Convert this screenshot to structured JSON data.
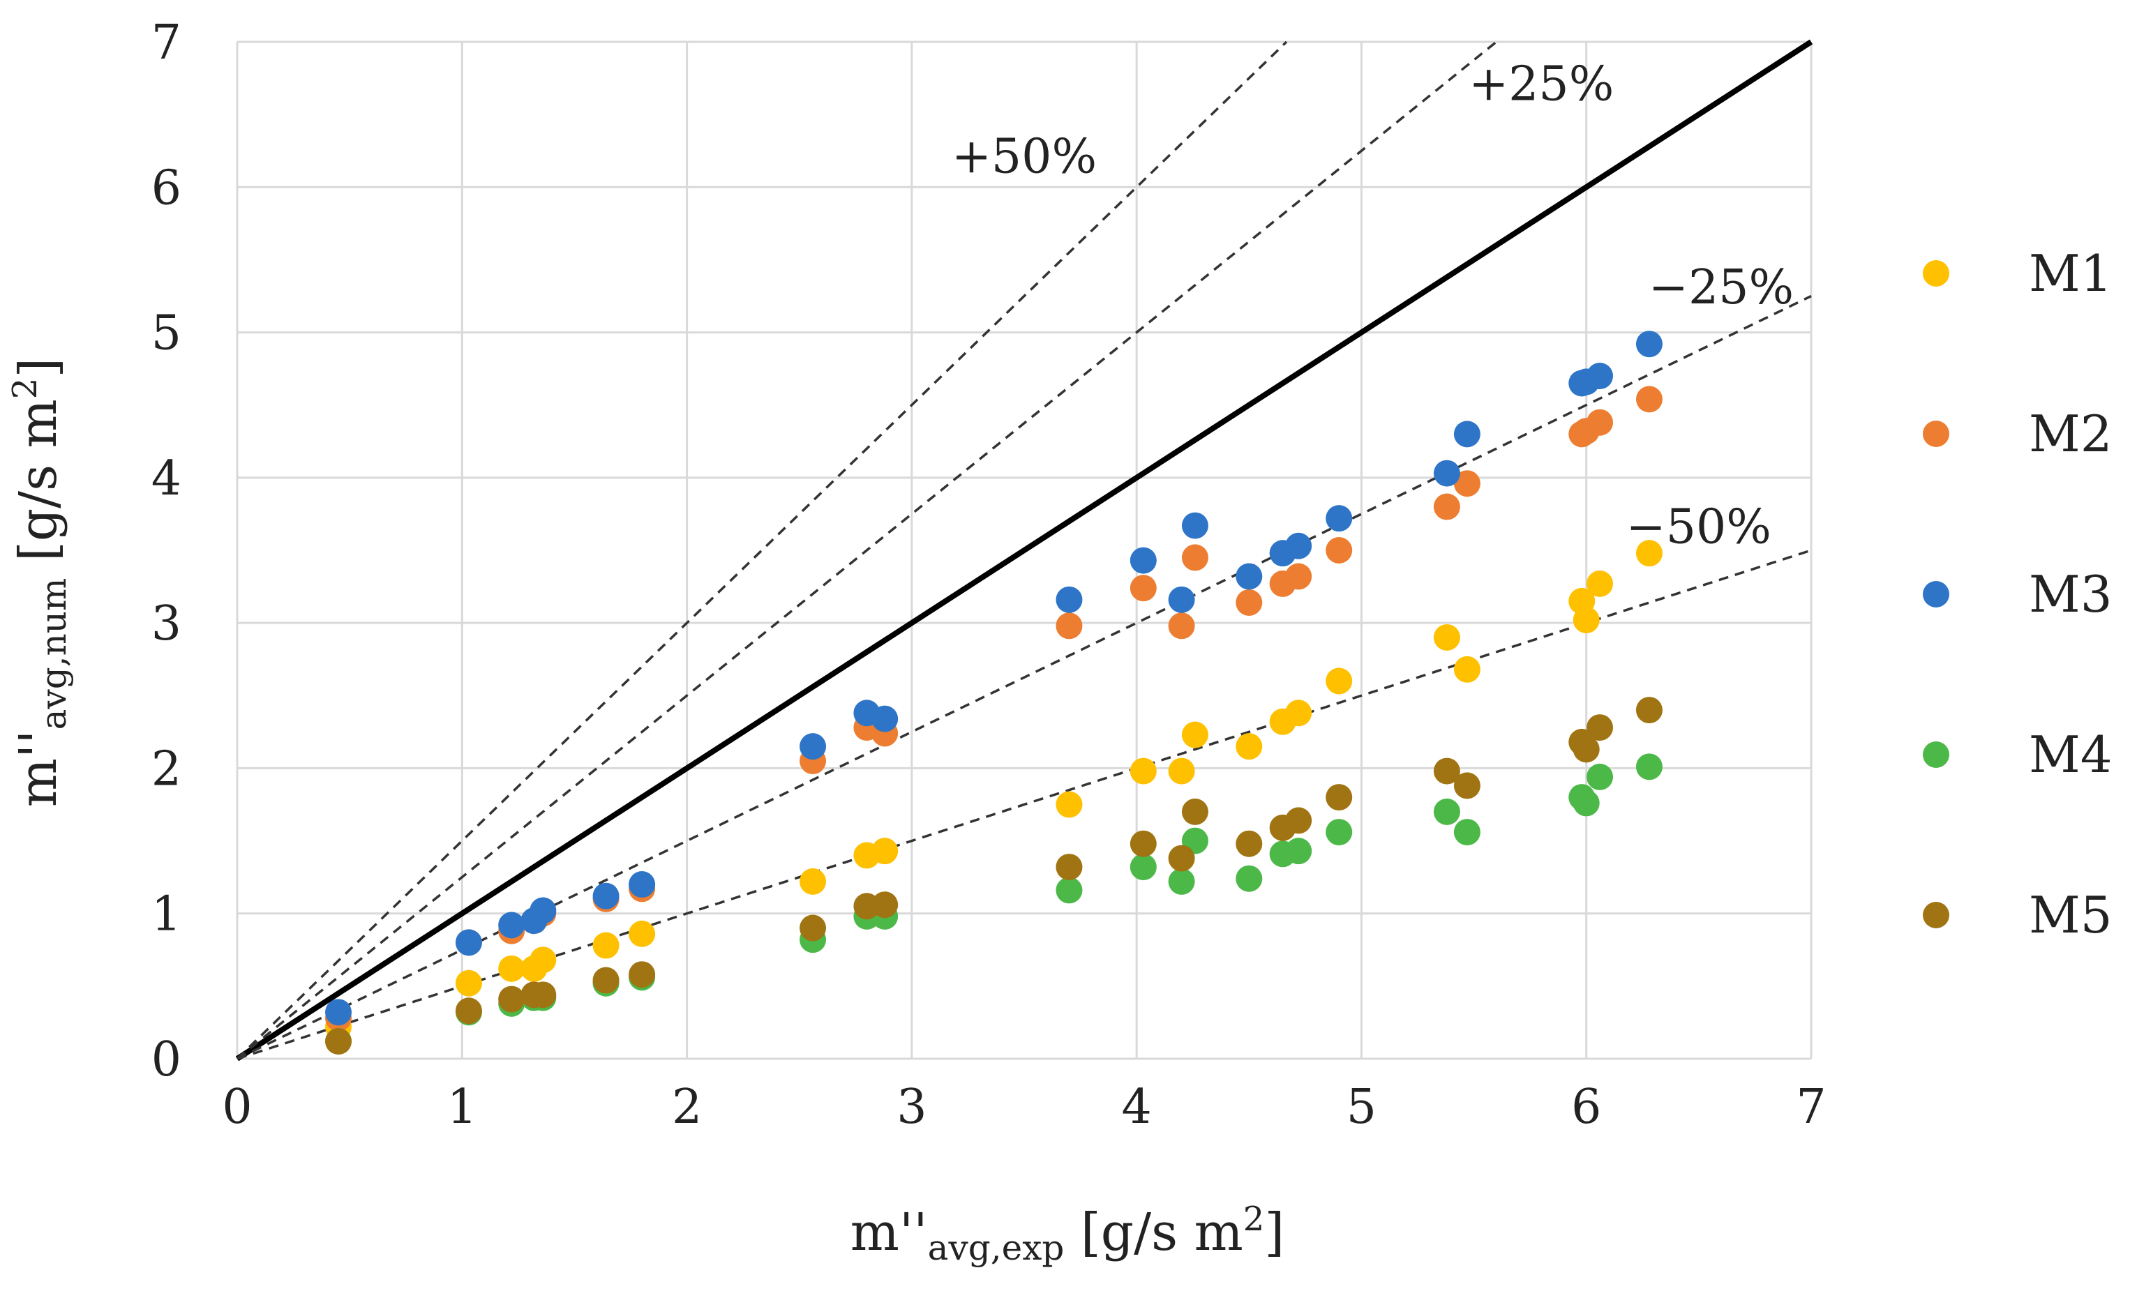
{
  "chart_data": {
    "type": "scatter",
    "title": "",
    "xlabel": {
      "main": "m''",
      "sub": "avg,exp",
      "unit_pre": " [g/s m",
      "unit_sup": "2",
      "unit_post": "]"
    },
    "ylabel": {
      "main": "m''",
      "sub": "avg,num",
      "unit_pre": " [g/s m",
      "unit_sup": "2",
      "unit_post": "]"
    },
    "xlim": [
      0,
      7
    ],
    "ylim": [
      0,
      7
    ],
    "x_ticks": [
      "0",
      "1",
      "2",
      "3",
      "4",
      "5",
      "6",
      "7"
    ],
    "y_ticks": [
      "0",
      "1",
      "2",
      "3",
      "4",
      "5",
      "6",
      "7"
    ],
    "grid": true,
    "legend_position": "right",
    "colors": {
      "M1": "#FFC000",
      "M2": "#ED7D31",
      "M3": "#2E75C8",
      "M4": "#4CB848",
      "M5": "#A07412",
      "grid": "#D9D9D9",
      "line": "#000000"
    },
    "reference_lines": [
      {
        "name": "parity",
        "slope": 1.0,
        "style": "solid",
        "label": ""
      },
      {
        "name": "plus50",
        "slope": 1.5,
        "style": "dashed",
        "label": "+50%",
        "label_x": 3.5,
        "label_y": 6.1
      },
      {
        "name": "plus25",
        "slope": 1.25,
        "style": "dashed",
        "label": "+25%",
        "label_x": 5.8,
        "label_y": 6.6
      },
      {
        "name": "minus25",
        "slope": 0.75,
        "style": "dashed",
        "label": "−25%",
        "label_x": 6.6,
        "label_y": 5.2
      },
      {
        "name": "minus50",
        "slope": 0.5,
        "style": "dashed",
        "label": "−50%",
        "label_x": 6.5,
        "label_y": 3.55
      }
    ],
    "x": [
      0.45,
      1.03,
      1.22,
      1.32,
      1.36,
      1.64,
      1.8,
      2.56,
      2.8,
      2.88,
      3.7,
      4.03,
      4.2,
      4.26,
      4.5,
      4.65,
      4.72,
      4.9,
      5.38,
      5.47,
      5.98,
      6.0,
      6.06,
      6.28
    ],
    "series": [
      {
        "name": "M1",
        "values": [
          0.22,
          0.52,
          0.62,
          0.62,
          0.68,
          0.78,
          0.86,
          1.22,
          1.4,
          1.43,
          1.75,
          1.98,
          1.98,
          2.23,
          2.15,
          2.32,
          2.38,
          2.6,
          2.9,
          2.68,
          3.15,
          3.02,
          3.27,
          3.48
        ]
      },
      {
        "name": "M2",
        "values": [
          0.28,
          0.8,
          0.88,
          0.95,
          1.0,
          1.1,
          1.17,
          2.05,
          2.28,
          2.24,
          2.98,
          3.24,
          2.98,
          3.45,
          3.14,
          3.27,
          3.32,
          3.5,
          3.8,
          3.96,
          4.3,
          4.32,
          4.38,
          4.54
        ]
      },
      {
        "name": "M3",
        "values": [
          0.32,
          0.8,
          0.92,
          0.95,
          1.02,
          1.12,
          1.2,
          2.15,
          2.38,
          2.34,
          3.16,
          3.43,
          3.16,
          3.67,
          3.32,
          3.48,
          3.53,
          3.72,
          4.03,
          4.3,
          4.65,
          4.66,
          4.7,
          4.92
        ]
      },
      {
        "name": "M4",
        "values": [
          0.12,
          0.32,
          0.38,
          0.42,
          0.42,
          0.52,
          0.56,
          0.82,
          0.98,
          0.98,
          1.16,
          1.32,
          1.22,
          1.5,
          1.24,
          1.41,
          1.43,
          1.56,
          1.7,
          1.56,
          1.8,
          1.76,
          1.94,
          2.01
        ]
      },
      {
        "name": "M5",
        "values": [
          0.12,
          0.33,
          0.41,
          0.44,
          0.44,
          0.54,
          0.58,
          0.9,
          1.05,
          1.06,
          1.32,
          1.48,
          1.38,
          1.7,
          1.48,
          1.59,
          1.64,
          1.8,
          1.98,
          1.88,
          2.18,
          2.13,
          2.28,
          2.4
        ]
      }
    ]
  }
}
